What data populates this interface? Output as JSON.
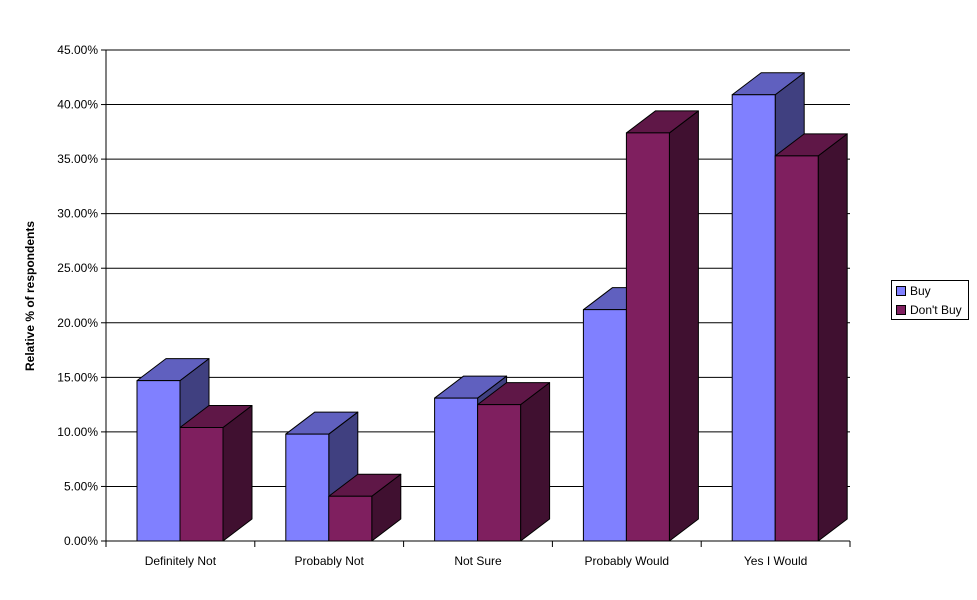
{
  "chart_data": {
    "type": "bar",
    "title": "",
    "xlabel": "",
    "ylabel": "Relative % of respondents",
    "ylim": [
      0,
      45
    ],
    "y_ticks": [
      "0.00%",
      "5.00%",
      "10.00%",
      "15.00%",
      "20.00%",
      "25.00%",
      "30.00%",
      "35.00%",
      "40.00%",
      "45.00%"
    ],
    "categories": [
      "Definitely Not",
      "Probably Not",
      "Not Sure",
      "Probably Would",
      "Yes I Would"
    ],
    "series": [
      {
        "name": "Buy",
        "values": [
          14.7,
          9.8,
          13.1,
          21.2,
          40.9
        ],
        "color": "#8080ff"
      },
      {
        "name": "Don't Buy",
        "values": [
          10.4,
          4.1,
          12.5,
          37.4,
          35.3
        ],
        "color": "#7f1f5f"
      }
    ],
    "grid": true,
    "style": "3d-clustered-column",
    "legend_position": "right"
  }
}
